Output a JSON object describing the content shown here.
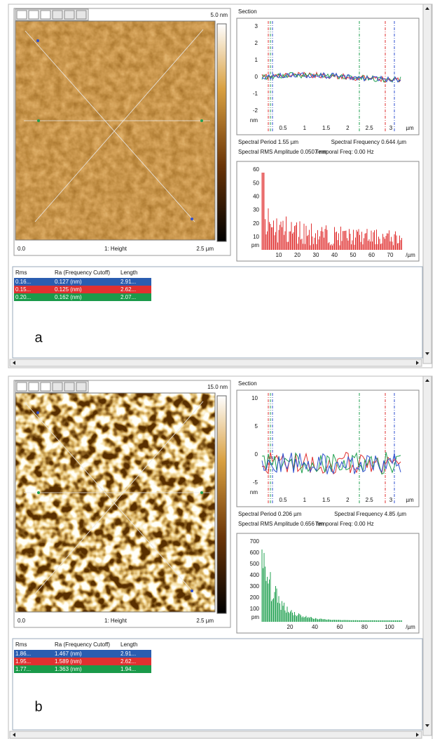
{
  "panels": [
    {
      "label": "a",
      "scale_max": "5.0 nm",
      "image_axis": {
        "start": "0.0",
        "title": "1: Height",
        "end": "2.5 µm"
      },
      "section": {
        "title": "Section",
        "yticks": [
          "3",
          "2",
          "1",
          "0",
          "-1",
          "-2"
        ],
        "y_unit": "nm",
        "xticks": [
          "0.5",
          "1",
          "1.5",
          "2",
          "2.5",
          "3"
        ],
        "x_unit": "µm"
      },
      "spectral_period": "Spectral Period 1.55 µm",
      "spectral_frequency": "Spectral Frequency 0.644 /µm",
      "spectral_rms": "Spectral RMS Amplitude 0.0507 nm",
      "temporal_freq": "Temporal Freq: 0.00 Hz",
      "spectrum": {
        "yticks": [
          "60",
          "50",
          "40",
          "30",
          "20",
          "10"
        ],
        "y_unit": "pm",
        "xticks": [
          "10",
          "20",
          "30",
          "40",
          "50",
          "60",
          "70"
        ],
        "x_unit": "/µm"
      },
      "table": {
        "headers": [
          "Rms",
          "Ra (Frequency Cutoff)",
          "Length"
        ],
        "rows": [
          [
            "0.16...",
            "0.127 (nm)",
            "2.91..."
          ],
          [
            "0.15...",
            "0.125 (nm)",
            "2.62..."
          ],
          [
            "0.20...",
            "0.162 (nm)",
            "2.07..."
          ]
        ]
      }
    },
    {
      "label": "b",
      "scale_max": "15.0 nm",
      "image_axis": {
        "start": "0.0",
        "title": "1: Height",
        "end": "2.5 µm"
      },
      "section": {
        "title": "Section",
        "yticks": [
          "10",
          "5",
          "0",
          "-5"
        ],
        "y_unit": "nm",
        "xticks": [
          "0.5",
          "1",
          "1.5",
          "2",
          "2.5",
          "3"
        ],
        "x_unit": "µm"
      },
      "spectral_period": "Spectral Period 0.206 µm",
      "spectral_frequency": "Spectral Frequency 4.85 /µm",
      "spectral_rms": "Spectral RMS Amplitude 0.656 nm",
      "temporal_freq": "Temporal Freq: 0.00 Hz",
      "spectrum": {
        "yticks": [
          "700",
          "600",
          "500",
          "400",
          "300",
          "200",
          "100"
        ],
        "y_unit": "pm",
        "xticks": [
          "20",
          "40",
          "60",
          "80",
          "100"
        ],
        "x_unit": "/µm"
      },
      "table": {
        "headers": [
          "Rms",
          "Ra (Frequency Cutoff)",
          "Length"
        ],
        "rows": [
          [
            "1.86...",
            "1.467 (nm)",
            "2.91..."
          ],
          [
            "1.95...",
            "1.589 (nm)",
            "2.62..."
          ],
          [
            "1.77...",
            "1.363 (nm)",
            "1.94..."
          ]
        ]
      }
    }
  ]
}
